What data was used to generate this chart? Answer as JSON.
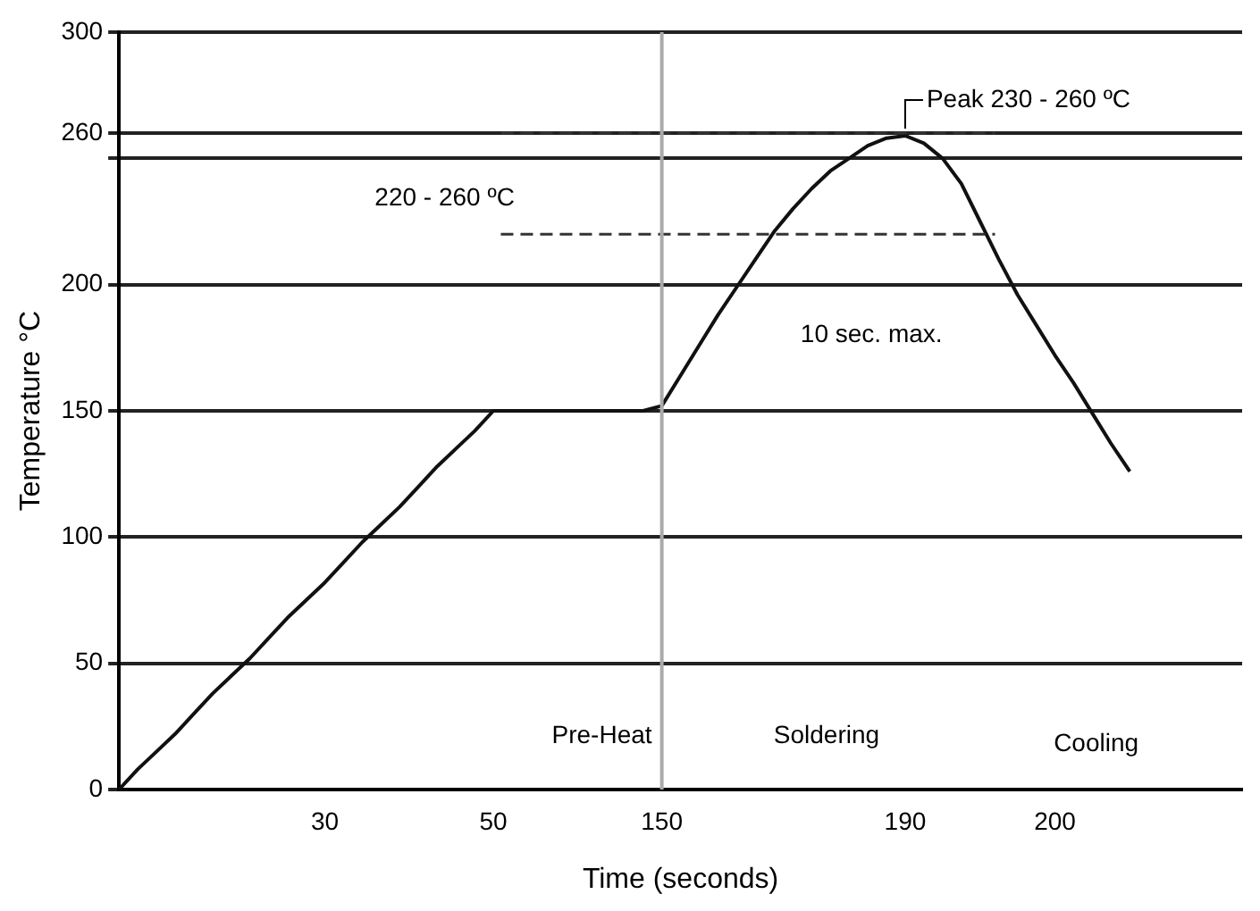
{
  "chart_data": {
    "type": "line",
    "xlabel": "Time (seconds)",
    "ylabel": "Temperature °C",
    "categories": [
      null,
      null,
      null,
      null,
      null,
      null,
      null,
      null,
      null,
      null,
      null,
      "30",
      null,
      null,
      null,
      null,
      null,
      null,
      null,
      null,
      "50",
      null,
      null,
      null,
      null,
      null,
      null,
      null,
      null,
      "150",
      null,
      null,
      null,
      null,
      null,
      null,
      null,
      null,
      null,
      null,
      null,
      null,
      "190",
      null,
      null,
      null,
      null,
      null,
      null,
      null,
      "200",
      null,
      null,
      null,
      null,
      null,
      null,
      null,
      null,
      null,
      null
    ],
    "series": [
      {
        "color": "#111111",
        "values": [
          0,
          8,
          15,
          22,
          30,
          38,
          45,
          52,
          60,
          68,
          75,
          82,
          90,
          98,
          105,
          112,
          120,
          128,
          135,
          142,
          150,
          150,
          150,
          150,
          150,
          150,
          150,
          150,
          150,
          152,
          164,
          176,
          188,
          199,
          210,
          221,
          230,
          238,
          245,
          250,
          255,
          258,
          259,
          256,
          250,
          240,
          225,
          210,
          196,
          184,
          172,
          161,
          149,
          137,
          126,
          null,
          null,
          null,
          null,
          null,
          null
        ]
      }
    ],
    "ylim": [
      0,
      300
    ],
    "yticks": [
      0,
      50,
      100,
      150,
      200,
      {
        "value": 250,
        "label": null
      },
      260,
      300
    ],
    "grid": "y",
    "legend": false,
    "marker": "none",
    "line_style": "solid",
    "ref_lines": [
      {
        "axis": "y",
        "value": 260,
        "line_style": "dashed",
        "color": "#333333"
      },
      {
        "axis": "y",
        "value": 220,
        "line_style": "dashed",
        "color": "#333333"
      },
      {
        "axis": "x",
        "value": "150",
        "color": "#aaaaaa",
        "line_style": "solid"
      }
    ],
    "annotations": [
      {
        "text": "Peak 230 - 260 ºC",
        "x": "190",
        "y": 259
      },
      "220 - 260 ºC",
      "10 sec. max.",
      "Pre-Heat",
      "Soldering",
      "Cooling"
    ]
  }
}
